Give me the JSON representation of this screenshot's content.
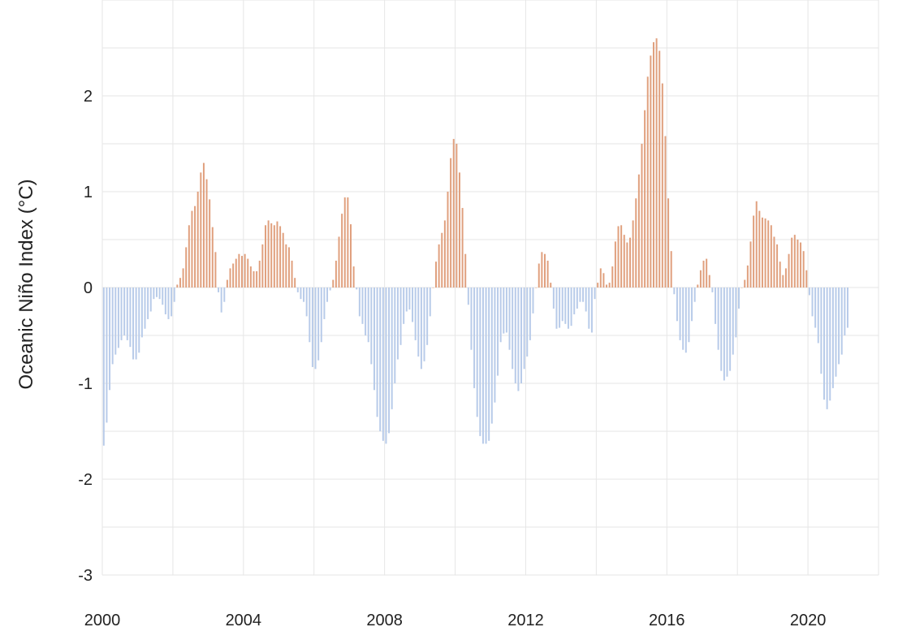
{
  "chart_data": {
    "type": "bar",
    "title": "",
    "xlabel": "",
    "ylabel": "Oceanic Niño Index (°C)",
    "xlim": [
      2000,
      2022
    ],
    "ylim": [
      -3,
      3
    ],
    "grid": true,
    "x_ticks": [
      2000,
      2004,
      2008,
      2012,
      2016,
      2020
    ],
    "x_tick_labels": [
      "2000",
      "2004",
      "2008",
      "2012",
      "2016",
      "2020"
    ],
    "y_ticks": [
      -3,
      -2,
      -1,
      0,
      1,
      2
    ],
    "y_tick_labels": [
      "-3",
      "-2",
      "-1",
      "0",
      "1",
      "2"
    ],
    "x_start": "2000-01",
    "x_step": "1 month",
    "colors": {
      "positive": "#e0a07e",
      "negative": "#b8cbe9"
    },
    "values": [
      -1.65,
      -1.41,
      -1.07,
      -0.8,
      -0.7,
      -0.63,
      -0.55,
      -0.5,
      -0.55,
      -0.62,
      -0.75,
      -0.75,
      -0.68,
      -0.52,
      -0.43,
      -0.33,
      -0.25,
      -0.12,
      -0.1,
      -0.12,
      -0.18,
      -0.28,
      -0.33,
      -0.3,
      -0.15,
      0.03,
      0.1,
      0.2,
      0.42,
      0.65,
      0.8,
      0.85,
      1.0,
      1.2,
      1.3,
      1.13,
      0.92,
      0.63,
      0.37,
      -0.05,
      -0.26,
      -0.15,
      0.08,
      0.2,
      0.25,
      0.3,
      0.35,
      0.33,
      0.35,
      0.3,
      0.22,
      0.17,
      0.17,
      0.28,
      0.45,
      0.65,
      0.7,
      0.67,
      0.65,
      0.69,
      0.64,
      0.57,
      0.45,
      0.42,
      0.28,
      0.1,
      -0.05,
      -0.12,
      -0.15,
      -0.3,
      -0.57,
      -0.83,
      -0.85,
      -0.76,
      -0.57,
      -0.33,
      -0.15,
      -0.03,
      0.08,
      0.28,
      0.53,
      0.77,
      0.94,
      0.94,
      0.66,
      0.22,
      -0.02,
      -0.3,
      -0.38,
      -0.5,
      -0.57,
      -0.8,
      -1.07,
      -1.35,
      -1.5,
      -1.6,
      -1.63,
      -1.52,
      -1.27,
      -1.0,
      -0.75,
      -0.6,
      -0.38,
      -0.25,
      -0.23,
      -0.36,
      -0.55,
      -0.72,
      -0.85,
      -0.77,
      -0.6,
      -0.3,
      0.0,
      0.27,
      0.45,
      0.57,
      0.7,
      1.0,
      1.35,
      1.55,
      1.5,
      1.2,
      0.83,
      0.35,
      -0.18,
      -0.65,
      -1.05,
      -1.35,
      -1.55,
      -1.63,
      -1.63,
      -1.6,
      -1.42,
      -1.2,
      -0.92,
      -0.57,
      -0.48,
      -0.47,
      -0.65,
      -0.85,
      -1.0,
      -1.08,
      -1.0,
      -0.85,
      -0.72,
      -0.55,
      -0.27,
      0.0,
      0.25,
      0.37,
      0.35,
      0.28,
      0.05,
      -0.22,
      -0.43,
      -0.42,
      -0.35,
      -0.38,
      -0.43,
      -0.4,
      -0.28,
      -0.22,
      -0.15,
      -0.15,
      -0.25,
      -0.43,
      -0.47,
      -0.12,
      0.05,
      0.2,
      0.15,
      0.03,
      0.05,
      0.22,
      0.48,
      0.64,
      0.65,
      0.55,
      0.47,
      0.52,
      0.7,
      0.93,
      1.18,
      1.5,
      1.85,
      2.2,
      2.42,
      2.56,
      2.6,
      2.47,
      2.13,
      1.58,
      0.93,
      0.38,
      -0.07,
      -0.35,
      -0.55,
      -0.65,
      -0.68,
      -0.57,
      -0.35,
      -0.15,
      0.03,
      0.18,
      0.28,
      0.3,
      0.13,
      -0.05,
      -0.38,
      -0.65,
      -0.87,
      -0.97,
      -0.93,
      -0.87,
      -0.7,
      -0.52,
      -0.22,
      0.0,
      0.08,
      0.23,
      0.48,
      0.75,
      0.9,
      0.8,
      0.73,
      0.72,
      0.7,
      0.65,
      0.53,
      0.45,
      0.27,
      0.13,
      0.2,
      0.35,
      0.52,
      0.55,
      0.5,
      0.47,
      0.38,
      0.18,
      -0.08,
      -0.3,
      -0.42,
      -0.58,
      -0.9,
      -1.17,
      -1.27,
      -1.18,
      -1.05,
      -0.93,
      -0.8,
      -0.7,
      -0.5,
      -0.42
    ]
  }
}
